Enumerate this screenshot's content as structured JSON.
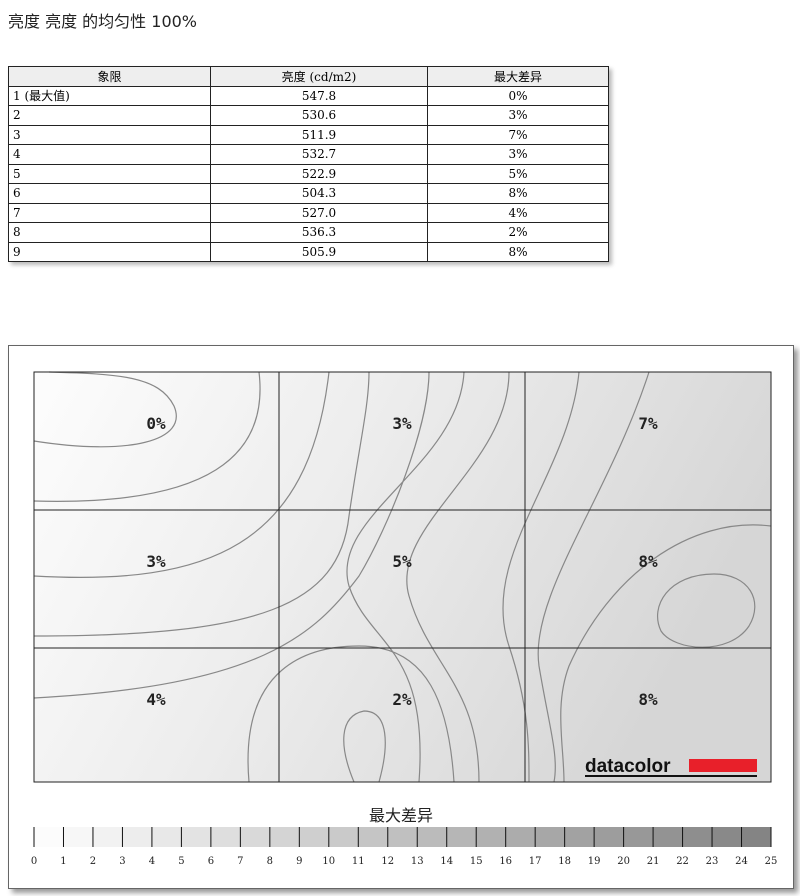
{
  "title": "亮度 亮度 的均匀性 100%",
  "table": {
    "headers": [
      "象限",
      "亮度 (cd/m2)",
      "最大差异"
    ],
    "rows": [
      [
        "1 (最大值)",
        "547.8",
        "0%"
      ],
      [
        "2",
        "530.6",
        "3%"
      ],
      [
        "3",
        "511.9",
        "7%"
      ],
      [
        "4",
        "532.7",
        "3%"
      ],
      [
        "5",
        "522.9",
        "5%"
      ],
      [
        "6",
        "504.3",
        "8%"
      ],
      [
        "7",
        "527.0",
        "4%"
      ],
      [
        "8",
        "536.3",
        "2%"
      ],
      [
        "9",
        "505.9",
        "8%"
      ]
    ]
  },
  "chart_data": {
    "type": "heatmap",
    "grid": [
      [
        "0%",
        "3%",
        "7%"
      ],
      [
        "3%",
        "5%",
        "8%"
      ],
      [
        "4%",
        "2%",
        "8%"
      ]
    ],
    "values": [
      [
        0,
        3,
        7
      ],
      [
        3,
        5,
        8
      ],
      [
        4,
        2,
        8
      ]
    ],
    "legend_title": "最大差异",
    "legend_ticks": [
      0,
      1,
      2,
      3,
      4,
      5,
      6,
      7,
      8,
      9,
      10,
      11,
      12,
      13,
      14,
      15,
      16,
      17,
      18,
      19,
      20,
      21,
      22,
      23,
      24,
      25
    ],
    "legend_range": [
      0,
      25
    ]
  },
  "logo": "datacolor",
  "colors": {
    "logo_red": "#e8202a"
  }
}
